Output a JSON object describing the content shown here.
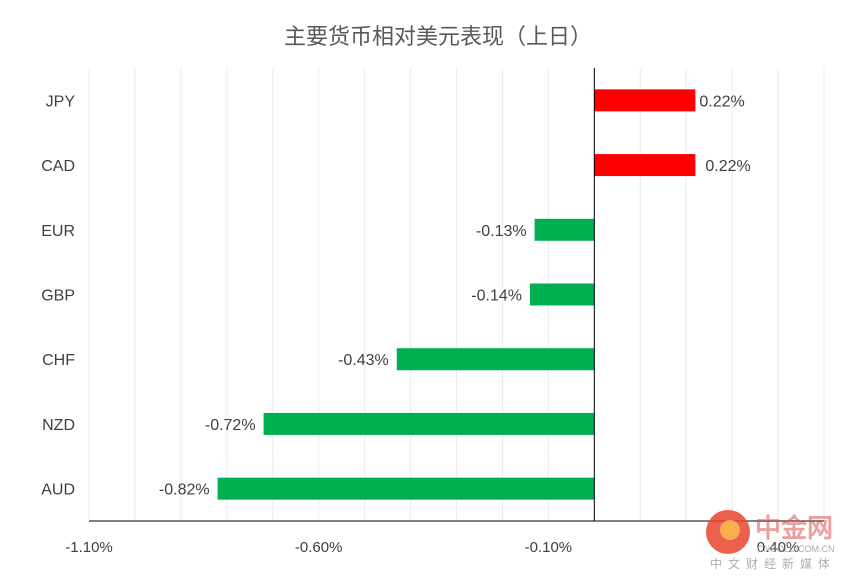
{
  "chart_data": {
    "type": "bar",
    "orientation": "horizontal",
    "title": "主要货币相对美元表现（上日）",
    "categories": [
      "JPY",
      "CAD",
      "EUR",
      "GBP",
      "CHF",
      "NZD",
      "AUD"
    ],
    "values": [
      0.22,
      0.22,
      -0.13,
      -0.14,
      -0.43,
      -0.72,
      -0.82
    ],
    "data_labels": [
      "0.22%",
      "0.22%",
      "-0.13%",
      "-0.14%",
      "-0.43%",
      "-0.72%",
      "-0.82%"
    ],
    "xlim": [
      -1.1,
      0.5
    ],
    "x_ticks": [
      -1.1,
      -0.6,
      -0.1,
      0.4
    ],
    "x_tick_labels": [
      "-1.10%",
      "-0.60%",
      "-0.10%",
      "0.40%"
    ],
    "grid": true,
    "colors": {
      "positive": "#ff0000",
      "negative": "#00b050"
    }
  },
  "watermark": {
    "name": "中金网",
    "url": "CNGOLD.COM.CN",
    "tagline": "中文财经新媒体"
  }
}
